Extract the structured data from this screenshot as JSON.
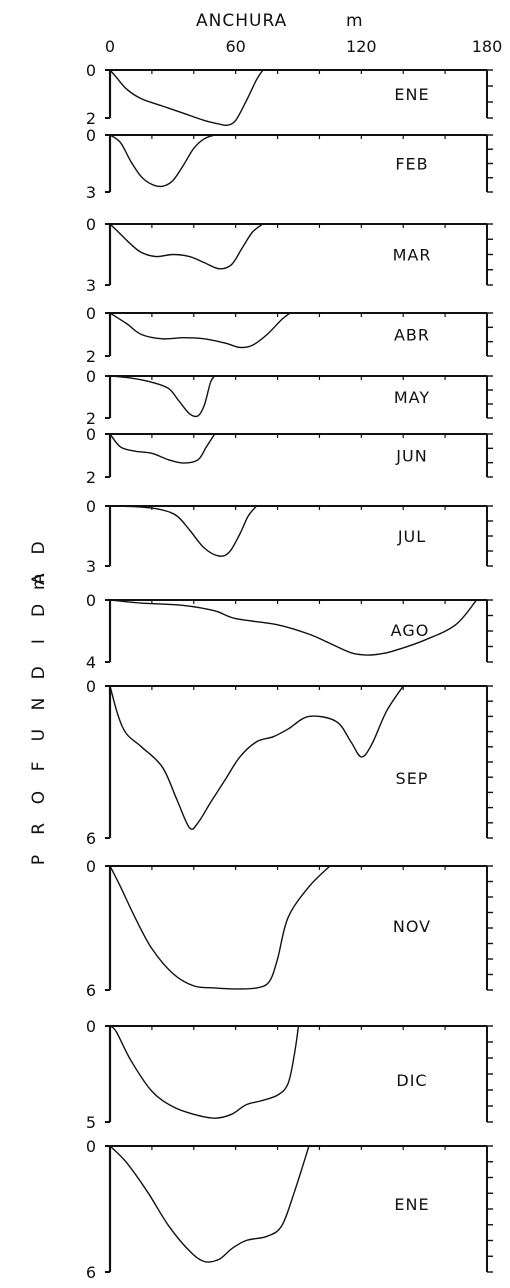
{
  "chart_data": {
    "type": "area",
    "title": "",
    "xlabel": "ANCHURA",
    "x_unit": "m",
    "ylabel": "PROFUNDIDAD",
    "y_unit": "m",
    "xlim": [
      0,
      180
    ],
    "x_ticks": [
      "0",
      "60",
      "120",
      "180"
    ],
    "panels": [
      {
        "label": "ENE",
        "depth_max": 2,
        "ticks": [
          "0",
          "2"
        ],
        "x": [
          0,
          3,
          8,
          15,
          25,
          35,
          45,
          52,
          56,
          60,
          65,
          70,
          73
        ],
        "depth": [
          0,
          0.3,
          0.8,
          1.2,
          1.5,
          1.8,
          2.1,
          2.25,
          2.3,
          2.1,
          1.3,
          0.4,
          0
        ]
      },
      {
        "label": "FEB",
        "depth_max": 3,
        "ticks": [
          "0",
          "3"
        ],
        "x": [
          0,
          5,
          10,
          15,
          20,
          25,
          30,
          35,
          40,
          45,
          50
        ],
        "depth": [
          0,
          0.4,
          1.4,
          2.2,
          2.6,
          2.7,
          2.4,
          1.6,
          0.7,
          0.2,
          0
        ]
      },
      {
        "label": "MAR",
        "depth_max": 3,
        "ticks": [
          "0",
          "3"
        ],
        "x": [
          0,
          5,
          10,
          15,
          22,
          30,
          38,
          45,
          52,
          58,
          63,
          68,
          73
        ],
        "depth": [
          0,
          0.5,
          1.0,
          1.4,
          1.6,
          1.5,
          1.6,
          1.9,
          2.2,
          2.0,
          1.2,
          0.4,
          0
        ]
      },
      {
        "label": "ABR",
        "depth_max": 2,
        "ticks": [
          "0",
          "2"
        ],
        "x": [
          0,
          8,
          15,
          25,
          35,
          45,
          55,
          62,
          68,
          75,
          82,
          86
        ],
        "depth": [
          0,
          0.5,
          1.0,
          1.2,
          1.15,
          1.2,
          1.4,
          1.6,
          1.5,
          1.0,
          0.3,
          0
        ]
      },
      {
        "label": "MAY",
        "depth_max": 2,
        "ticks": [
          "0",
          "2"
        ],
        "x": [
          0,
          10,
          20,
          28,
          33,
          38,
          42,
          45,
          48,
          50
        ],
        "depth": [
          0,
          0.1,
          0.3,
          0.6,
          1.2,
          1.8,
          1.9,
          1.4,
          0.3,
          0
        ]
      },
      {
        "label": "JUN",
        "depth_max": 2,
        "ticks": [
          "0",
          "2"
        ],
        "x": [
          0,
          5,
          12,
          20,
          28,
          35,
          42,
          46,
          50
        ],
        "depth": [
          0,
          0.6,
          0.8,
          0.9,
          1.2,
          1.35,
          1.2,
          0.6,
          0
        ]
      },
      {
        "label": "JUL",
        "depth_max": 3,
        "ticks": [
          "0",
          "3"
        ],
        "x": [
          0,
          15,
          25,
          32,
          38,
          45,
          52,
          57,
          62,
          66,
          70
        ],
        "depth": [
          0,
          0.05,
          0.2,
          0.5,
          1.2,
          2.1,
          2.5,
          2.3,
          1.4,
          0.5,
          0
        ]
      },
      {
        "label": "AGO",
        "depth_max": 4,
        "ticks": [
          "0",
          "4"
        ],
        "x": [
          0,
          15,
          35,
          50,
          60,
          80,
          95,
          105,
          115,
          122,
          128,
          135,
          150,
          165,
          175
        ],
        "depth": [
          0,
          0.2,
          0.35,
          0.7,
          1.2,
          1.6,
          2.2,
          2.8,
          3.4,
          3.55,
          3.5,
          3.3,
          2.6,
          1.6,
          0
        ]
      },
      {
        "label": "SEP",
        "depth_max": 6,
        "ticks": [
          "0",
          "6"
        ],
        "x": [
          0,
          4,
          8,
          15,
          25,
          32,
          38,
          42,
          48,
          55,
          62,
          70,
          78,
          85,
          95,
          108,
          115,
          120,
          125,
          132,
          140
        ],
        "depth": [
          0,
          1.2,
          1.9,
          2.4,
          3.2,
          4.5,
          5.6,
          5.4,
          4.6,
          3.7,
          2.8,
          2.2,
          2.0,
          1.7,
          1.2,
          1.4,
          2.2,
          2.8,
          2.3,
          1.0,
          0
        ]
      },
      {
        "label": "NOV",
        "depth_max": 6,
        "ticks": [
          "0",
          "6"
        ],
        "x": [
          0,
          5,
          12,
          20,
          30,
          40,
          50,
          60,
          70,
          76,
          80,
          85,
          95,
          105
        ],
        "depth": [
          0,
          1.0,
          2.5,
          4.0,
          5.2,
          5.8,
          5.9,
          5.95,
          5.9,
          5.6,
          4.5,
          2.5,
          1.0,
          0
        ]
      },
      {
        "label": "DIC",
        "depth_max": 5,
        "ticks": [
          "0",
          "5"
        ],
        "x": [
          0,
          3,
          10,
          20,
          30,
          40,
          50,
          58,
          65,
          72,
          80,
          85,
          88,
          90
        ],
        "depth": [
          0,
          0.3,
          1.8,
          3.4,
          4.2,
          4.6,
          4.8,
          4.6,
          4.1,
          3.9,
          3.6,
          3.0,
          1.5,
          0
        ]
      },
      {
        "label": "ENE",
        "depth_max": 6,
        "ticks": [
          "0",
          "6"
        ],
        "x": [
          0,
          8,
          18,
          28,
          38,
          45,
          52,
          58,
          65,
          75,
          82,
          88,
          95
        ],
        "depth": [
          0,
          0.8,
          2.2,
          3.8,
          5.0,
          5.5,
          5.4,
          4.9,
          4.5,
          4.3,
          3.8,
          2.2,
          0
        ]
      }
    ]
  }
}
